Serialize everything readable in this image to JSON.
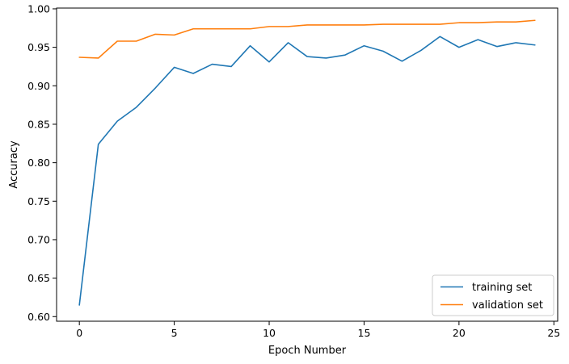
{
  "chart_data": {
    "type": "line",
    "title": "",
    "xlabel": "Epoch Number",
    "ylabel": "Accuracy",
    "xlim": [
      -1.2,
      25.2
    ],
    "ylim": [
      0.594,
      1.001
    ],
    "xticks": [
      0,
      5,
      10,
      15,
      20,
      25
    ],
    "yticks": [
      0.6,
      0.65,
      0.7,
      0.75,
      0.8,
      0.85,
      0.9,
      0.95,
      1.0
    ],
    "xtick_labels": [
      "0",
      "5",
      "10",
      "15",
      "20",
      "25"
    ],
    "ytick_labels": [
      "0.60",
      "0.65",
      "0.70",
      "0.75",
      "0.80",
      "0.85",
      "0.90",
      "0.95",
      "1.00"
    ],
    "grid": false,
    "legend_position": "lower-right",
    "x": [
      0,
      1,
      2,
      3,
      4,
      5,
      6,
      7,
      8,
      9,
      10,
      11,
      12,
      13,
      14,
      15,
      16,
      17,
      18,
      19,
      20,
      21,
      22,
      23,
      24
    ],
    "series": [
      {
        "name": "training set",
        "color": "#1f77b4",
        "values": [
          0.615,
          0.824,
          0.854,
          0.872,
          0.897,
          0.924,
          0.916,
          0.928,
          0.925,
          0.952,
          0.931,
          0.956,
          0.938,
          0.936,
          0.94,
          0.952,
          0.945,
          0.932,
          0.946,
          0.964,
          0.95,
          0.96,
          0.951,
          0.956,
          0.953
        ]
      },
      {
        "name": "validation set",
        "color": "#ff7f0e",
        "values": [
          0.937,
          0.936,
          0.958,
          0.958,
          0.967,
          0.966,
          0.974,
          0.974,
          0.974,
          0.974,
          0.977,
          0.977,
          0.979,
          0.979,
          0.979,
          0.979,
          0.98,
          0.98,
          0.98,
          0.98,
          0.982,
          0.982,
          0.983,
          0.983,
          0.985
        ]
      }
    ]
  }
}
